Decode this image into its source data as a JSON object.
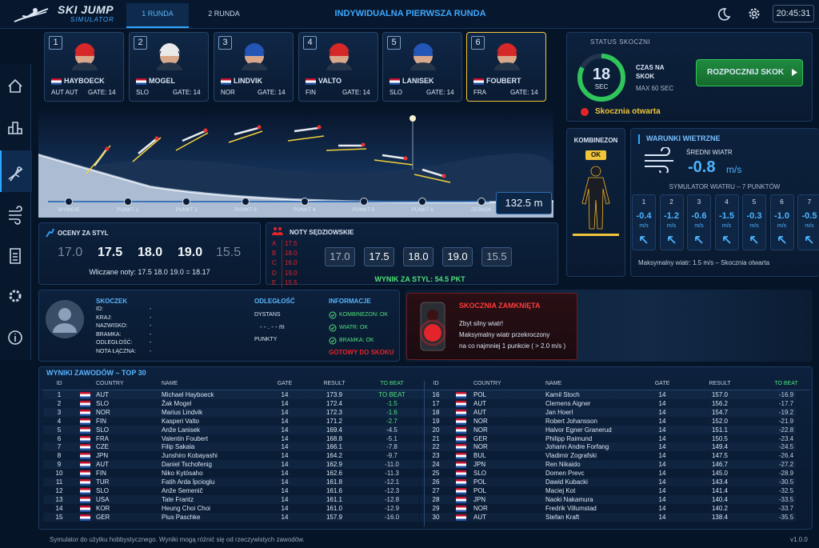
{
  "header": {
    "logo_title": "SKI JUMP",
    "logo_subtitle": "SIMULATOR",
    "tabs": [
      "1 RUNDA",
      "2 RUNDA"
    ],
    "title": "INDYWIDUALNA PIERWSZA RUNDA",
    "clock": "20:45:31"
  },
  "jumpers": [
    {
      "number": "1",
      "name": "HAYBOECK",
      "country": "AUT AUT",
      "gate": "GATE: 14"
    },
    {
      "number": "2",
      "name": "MOGEL",
      "country": "SLO",
      "gate": "GATE: 14"
    },
    {
      "number": "3",
      "name": "LINDVIK",
      "country": "NOR",
      "gate": "GATE: 14"
    },
    {
      "number": "4",
      "name": "VALTO",
      "country": "FIN",
      "gate": "GATE: 14"
    },
    {
      "number": "5",
      "name": "LANISEK",
      "country": "SLO",
      "gate": "GATE: 14"
    },
    {
      "number": "6",
      "name": "FOUBERT",
      "country": "FRA",
      "gate": "GATE: 14"
    }
  ],
  "status": {
    "title": "STATUS SKOCZNI",
    "timer": "18",
    "timer_unit": "SEC",
    "time_label": "CZAS NA",
    "time_label2": "SKOK",
    "max": "MAX 60 SEC",
    "button": "ROZPOCZNIJ SKOK",
    "state": "Skocznia otwarta"
  },
  "timeline": {
    "points": [
      "WYBICIE",
      "PUNKT 1",
      "PUNKT 2",
      "PUNKT 3",
      "PUNKT 4",
      "PUNKT 5",
      "PUNKT 6",
      "ZESKOK"
    ],
    "distance": "132.5 m"
  },
  "suit": {
    "title": "KOMBINEZON",
    "status": "OK"
  },
  "wind": {
    "title": "WARUNKI WIETRZNE",
    "avg_label": "ŚREDNI WIATR",
    "avg_value": "-0.8",
    "avg_unit": "m/s",
    "simulator": "SYMULATOR WIATRU – 7 PUNKTÓW",
    "points": [
      {
        "n": "1",
        "value": "-0.4",
        "unit": "m/s"
      },
      {
        "n": "2",
        "value": "-1.2",
        "unit": "m/s"
      },
      {
        "n": "3",
        "value": "-0.6",
        "unit": "m/s"
      },
      {
        "n": "4",
        "value": "-1.5",
        "unit": "m/s"
      },
      {
        "n": "5",
        "value": "-0.3",
        "unit": "m/s"
      },
      {
        "n": "6",
        "value": "-1.0",
        "unit": "m/s"
      },
      {
        "n": "7",
        "value": "-0.5",
        "unit": "m/s"
      }
    ],
    "footer": "Maksymalny wiatr:  1.5 m/s – Skocznia otwarta"
  },
  "style": {
    "title": "OCENY ZA STYL",
    "scores": [
      "17.0",
      "17.5",
      "18.0",
      "19.0",
      "15.5"
    ],
    "counted": "Wliczane noty:  17.5  18.0  19.0  = 18.17"
  },
  "judges": {
    "title": "NOTY SĘDZIOWSKIE",
    "list": [
      {
        "letter": "A",
        "value": "17.5"
      },
      {
        "letter": "B",
        "value": "18.0"
      },
      {
        "letter": "C",
        "value": "16.0"
      },
      {
        "letter": "D",
        "value": "19.0"
      },
      {
        "letter": "E",
        "value": "15.5"
      }
    ],
    "boxes": [
      "17.0",
      "17.5",
      "18.0",
      "19.0",
      "15.5"
    ],
    "result": "WYNIK ZA STYL:  54.5 PKT"
  },
  "jumper_info": {
    "title": "SKOCZEK",
    "fields": [
      {
        "label": "ID:",
        "value": "-"
      },
      {
        "label": "KRAJ:",
        "value": "-"
      },
      {
        "label": "NAZWISKO:",
        "value": "-"
      },
      {
        "label": "BRAMKA:",
        "value": "-"
      },
      {
        "label": "ODLEGŁOŚĆ:",
        "value": "-"
      },
      {
        "label": "NOTA ŁĄCZNA:",
        "value": "-"
      }
    ],
    "distance_title": "ODLEGŁOŚĆ",
    "distance_label": "DYSTANS",
    "distance_value": "- - . - - m",
    "points_label": "PUNKTY",
    "info_title": "INFORMACJE",
    "info": [
      "KOMBINEZON: OK",
      "WIATR: OK",
      "BRAMKA: OK"
    ],
    "ready": "GOTOWY DO SKOKU"
  },
  "alert": {
    "title": "SKOCZNIA ZAMKNIĘTA",
    "lines": [
      "Zbyt silny wiatr!",
      "Maksymalny wiatr przekroczony",
      "na co najmniej 1 punkcie ( > 2.0 m/s )"
    ]
  },
  "results": {
    "title": "WYNIKI ZAWODÓW – TOP 30",
    "columns": [
      "ID",
      "COUNTRY",
      "NAME",
      "GATE",
      "RESULT",
      "TO BEAT"
    ],
    "rows": [
      {
        "id": "1",
        "country": "AUT",
        "name": "Michael Hayboeck",
        "gate": "14",
        "result": "173.9",
        "to_beat": "TO BEAT"
      },
      {
        "id": "2",
        "country": "SLO",
        "name": "Žak Mogel",
        "gate": "14",
        "result": "172.4",
        "to_beat": "-1.5"
      },
      {
        "id": "3",
        "country": "NOR",
        "name": "Marius Lindvik",
        "gate": "14",
        "result": "172.3",
        "to_beat": "-1.6"
      },
      {
        "id": "4",
        "country": "FIN",
        "name": "Kasperi Valto",
        "gate": "14",
        "result": "171.2",
        "to_beat": "-2.7"
      },
      {
        "id": "5",
        "country": "SLO",
        "name": "Anže Lanisek",
        "gate": "14",
        "result": "169.4",
        "to_beat": "-4.5"
      },
      {
        "id": "6",
        "country": "FRA",
        "name": "Valentin Foubert",
        "gate": "14",
        "result": "168.8",
        "to_beat": "-5.1"
      },
      {
        "id": "7",
        "country": "CZE",
        "name": "Filip Sakala",
        "gate": "14",
        "result": "166.1",
        "to_beat": "-7.8"
      },
      {
        "id": "8",
        "country": "JPN",
        "name": "Junshiro Kobayashi",
        "gate": "14",
        "result": "164.2",
        "to_beat": "-9.7"
      },
      {
        "id": "9",
        "country": "AUT",
        "name": "Daniel Tschofenig",
        "gate": "14",
        "result": "162.9",
        "to_beat": "-11.0"
      },
      {
        "id": "10",
        "country": "FIN",
        "name": "Niko Kytösaho",
        "gate": "14",
        "result": "162.6",
        "to_beat": "-11.3"
      },
      {
        "id": "11",
        "country": "TUR",
        "name": "Fatih Arda İpcioglu",
        "gate": "14",
        "result": "161.8",
        "to_beat": "-12.1"
      },
      {
        "id": "12",
        "country": "SLO",
        "name": "Anže Semenič",
        "gate": "14",
        "result": "161.6",
        "to_beat": "-12.3"
      },
      {
        "id": "13",
        "country": "USA",
        "name": "Tate Frantz",
        "gate": "14",
        "result": "161.1",
        "to_beat": "-12.8"
      },
      {
        "id": "14",
        "country": "KOR",
        "name": "Heung Choi Choi",
        "gate": "14",
        "result": "161.0",
        "to_beat": "-12.9"
      },
      {
        "id": "15",
        "country": "GER",
        "name": "Pius Paschke",
        "gate": "14",
        "result": "157.9",
        "to_beat": "-16.0"
      },
      {
        "id": "16",
        "country": "POL",
        "name": "Kamil Stoch",
        "gate": "14",
        "result": "157.0",
        "to_beat": "-16.9"
      },
      {
        "id": "17",
        "country": "AUT",
        "name": "Clemens Aigner",
        "gate": "14",
        "result": "156.2",
        "to_beat": "-17.7"
      },
      {
        "id": "18",
        "country": "AUT",
        "name": "Jan Hoerl",
        "gate": "14",
        "result": "154.7",
        "to_beat": "-19.2"
      },
      {
        "id": "19",
        "country": "NOR",
        "name": "Robert Johansson",
        "gate": "14",
        "result": "152.0",
        "to_beat": "-21.9"
      },
      {
        "id": "20",
        "country": "NOR",
        "name": "Halvor Egner Granerud",
        "gate": "14",
        "result": "151.1",
        "to_beat": "-22.8"
      },
      {
        "id": "21",
        "country": "GER",
        "name": "Philipp Raimund",
        "gate": "14",
        "result": "150.5",
        "to_beat": "-23.4"
      },
      {
        "id": "22",
        "country": "NOR",
        "name": "Johann Andre Forfang",
        "gate": "14",
        "result": "149.4",
        "to_beat": "-24.5"
      },
      {
        "id": "23",
        "country": "BUL",
        "name": "Vladimir Zografski",
        "gate": "14",
        "result": "147.5",
        "to_beat": "-26.4"
      },
      {
        "id": "24",
        "country": "JPN",
        "name": "Ren Nikaido",
        "gate": "14",
        "result": "146.7",
        "to_beat": "-27.2"
      },
      {
        "id": "25",
        "country": "SLO",
        "name": "Domen Prevc",
        "gate": "14",
        "result": "145.0",
        "to_beat": "-28.9"
      },
      {
        "id": "26",
        "country": "POL",
        "name": "Dawid Kubacki",
        "gate": "14",
        "result": "143.4",
        "to_beat": "-30.5"
      },
      {
        "id": "27",
        "country": "POL",
        "name": "Maciej Kot",
        "gate": "14",
        "result": "141.4",
        "to_beat": "-32.5"
      },
      {
        "id": "28",
        "country": "JPN",
        "name": "Naoki Nakamura",
        "gate": "14",
        "result": "140.4",
        "to_beat": "-33.5"
      },
      {
        "id": "29",
        "country": "NOR",
        "name": "Fredrik Villumstad",
        "gate": "14",
        "result": "140.2",
        "to_beat": "-33.7"
      },
      {
        "id": "30",
        "country": "AUT",
        "name": "Stefan Kraft",
        "gate": "14",
        "result": "138.4",
        "to_beat": "-35.5"
      }
    ]
  },
  "footer": {
    "disclaimer": "Symulator do użytku hobbystycznego. Wyniki mogą różnić się od rzeczywistych zawodów.",
    "version": "v1.0.0"
  }
}
